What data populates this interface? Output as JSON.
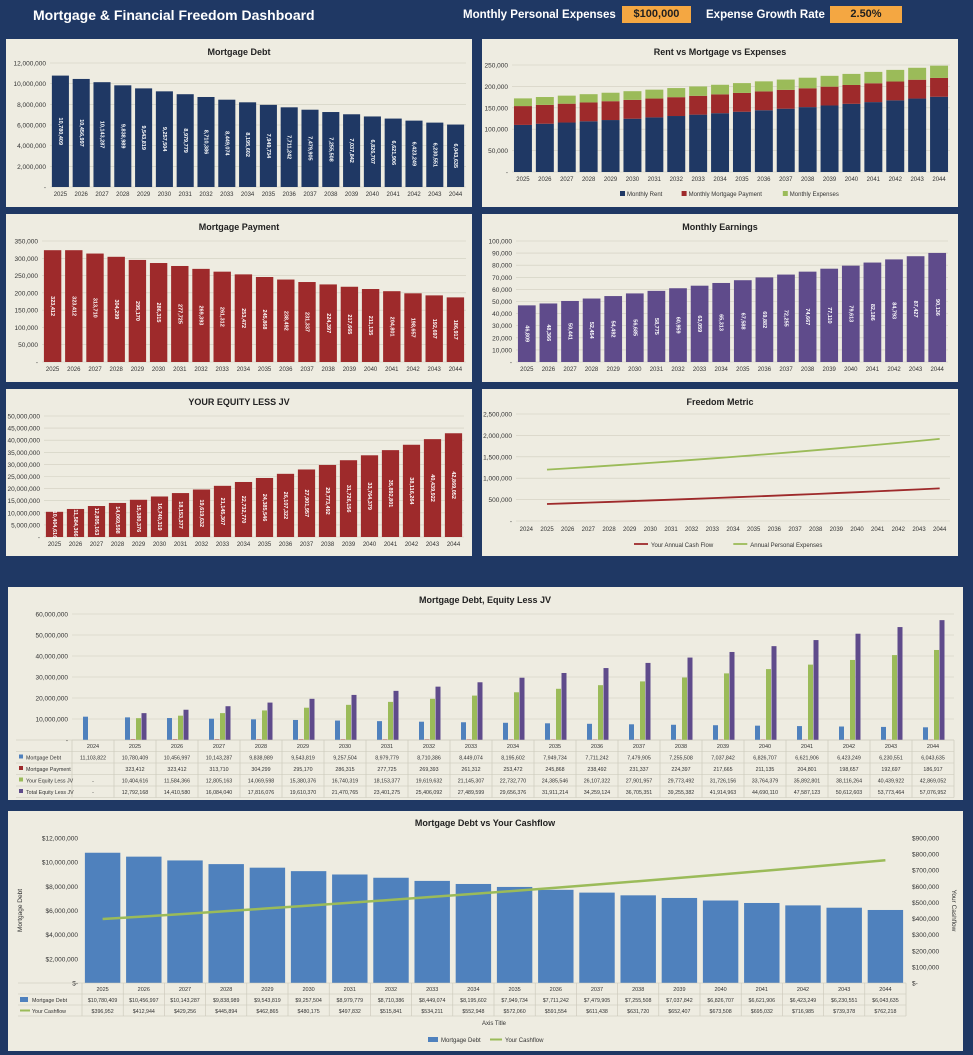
{
  "header": {
    "title": "Mortgage & Financial Freedom Dashboard",
    "expenses_label": "Monthly Personal Expenses",
    "expenses_value": "$100,000",
    "growth_label": "Expense Growth Rate",
    "growth_value": "2.50%"
  },
  "colors": {
    "navy": "#1f3864",
    "red": "#9e2a2b",
    "purple": "#5f4b8b",
    "green": "#9bbb59",
    "blue": "#4f81bd",
    "bg": "#eeece1",
    "accent": "#f4a742"
  },
  "chart_data": [
    {
      "id": "debt",
      "type": "bar",
      "title": "Mortgage Debt",
      "categories": [
        "2025",
        "2026",
        "2027",
        "2028",
        "2029",
        "2030",
        "2031",
        "2032",
        "2033",
        "2034",
        "2035",
        "2036",
        "2037",
        "2038",
        "2039",
        "2040",
        "2041",
        "2042",
        "2043",
        "2044"
      ],
      "values": [
        10780409,
        10456997,
        10143287,
        9838989,
        9543819,
        9257504,
        8979779,
        8710386,
        8449074,
        8195602,
        7949734,
        7711242,
        7479905,
        7255508,
        7037842,
        6826707,
        6621906,
        6423249,
        6230551,
        6043635
      ],
      "data_labels": [
        "10,780,409",
        "10,456,997",
        "10,143,287",
        "9,838,989",
        "9,543,819",
        "9,257,504",
        "8,979,779",
        "8,710,386",
        "8,449,074",
        "8,195,602",
        "7,949,734",
        "7,711,242",
        "7,479,905",
        "7,255,508",
        "7,037,842",
        "6,826,707",
        "6,621,906",
        "6,423,249",
        "6,230,551",
        "6,043,635"
      ],
      "yticks": [
        "-",
        "2,000,000",
        "4,000,000",
        "6,000,000",
        "8,000,000",
        "10,000,000",
        "12,000,000"
      ],
      "ylim": [
        0,
        12000000
      ]
    },
    {
      "id": "rent",
      "type": "bar",
      "title": "Rent vs Mortgage vs Expenses",
      "stacked": true,
      "categories": [
        "2025",
        "2026",
        "2027",
        "2028",
        "2029",
        "2030",
        "2031",
        "2032",
        "2033",
        "2034",
        "2035",
        "2036",
        "2037",
        "2038",
        "2039",
        "2040",
        "2041",
        "2042",
        "2043",
        "2044"
      ],
      "series": [
        {
          "name": "Monthly Rent",
          "values": [
            110000,
            112800,
            115600,
            118500,
            121400,
            124500,
            127600,
            130800,
            134000,
            137400,
            140800,
            144300,
            147900,
            151600,
            155400,
            159300,
            163300,
            167400,
            171600,
            175800
          ]
        },
        {
          "name": "Monthly Mortgage Payment",
          "values": [
            44000,
            44000,
            44000,
            44000,
            44000,
            44000,
            44000,
            44000,
            44000,
            44000,
            44000,
            44000,
            44000,
            44000,
            44000,
            44000,
            44000,
            44000,
            44000,
            44000
          ]
        },
        {
          "name": "Monthly Expenses",
          "values": [
            18000,
            18400,
            18800,
            19300,
            19800,
            20300,
            20800,
            21300,
            21800,
            22400,
            22900,
            23500,
            24100,
            24700,
            25300,
            25900,
            26600,
            27200,
            27900,
            28600
          ]
        }
      ],
      "yticks": [
        "-",
        "50,000",
        "100,000",
        "150,000",
        "200,000",
        "250,000"
      ],
      "ylim": [
        0,
        250000
      ],
      "legend": "bottom"
    },
    {
      "id": "payment",
      "type": "bar",
      "title": "Mortgage Payment",
      "categories": [
        "2025",
        "2026",
        "2027",
        "2028",
        "2029",
        "2030",
        "2031",
        "2032",
        "2033",
        "2034",
        "2035",
        "2036",
        "2037",
        "2038",
        "2039",
        "2040",
        "2041",
        "2042",
        "2043",
        "2044"
      ],
      "values": [
        323412,
        323412,
        313710,
        304299,
        295170,
        286315,
        277725,
        269393,
        261312,
        253472,
        245868,
        238492,
        231337,
        224397,
        217665,
        211135,
        204801,
        198657,
        192697,
        186917
      ],
      "data_labels": [
        "323,412",
        "323,412",
        "313,710",
        "304,299",
        "295,170",
        "286,315",
        "277,725",
        "269,393",
        "261,312",
        "253,472",
        "245,868",
        "238,492",
        "231,337",
        "224,397",
        "217,665",
        "211,135",
        "204,801",
        "198,657",
        "192,697",
        "186,917"
      ],
      "yticks": [
        "-",
        "50,000",
        "100,000",
        "150,000",
        "200,000",
        "250,000",
        "300,000",
        "350,000"
      ],
      "ylim": [
        0,
        350000
      ]
    },
    {
      "id": "earn",
      "type": "bar",
      "title": "Monthly Earnings",
      "categories": [
        "2025",
        "2026",
        "2027",
        "2028",
        "2029",
        "2030",
        "2031",
        "2032",
        "2033",
        "2034",
        "2035",
        "2036",
        "2037",
        "2038",
        "2039",
        "2040",
        "2041",
        "2042",
        "2043",
        "2044"
      ],
      "values": [
        46809,
        48366,
        50441,
        52454,
        54492,
        56685,
        58775,
        60959,
        63059,
        65313,
        67588,
        69882,
        72255,
        74667,
        77110,
        79613,
        82186,
        84793,
        87427,
        90136
      ],
      "data_labels": [
        "46,809",
        "48,366",
        "50,441",
        "52,454",
        "54,492",
        "56,685",
        "58,775",
        "60,959",
        "63,059",
        "65,313",
        "67,588",
        "69,882",
        "72,255",
        "74,667",
        "77,110",
        "79,613",
        "82,186",
        "84,793",
        "87,427",
        "90,136"
      ],
      "yticks": [
        "-",
        "10,000",
        "20,000",
        "30,000",
        "40,000",
        "50,000",
        "60,000",
        "70,000",
        "80,000",
        "90,000",
        "100,000"
      ],
      "ylim": [
        0,
        100000
      ]
    },
    {
      "id": "equity",
      "type": "bar",
      "title": "YOUR EQUITY LESS JV",
      "categories": [
        "2025",
        "2026",
        "2027",
        "2028",
        "2029",
        "2030",
        "2031",
        "2032",
        "2033",
        "2034",
        "2035",
        "2036",
        "2037",
        "2038",
        "2039",
        "2040",
        "2041",
        "2042",
        "2043",
        "2044"
      ],
      "values": [
        10404616,
        11584366,
        12805163,
        14069598,
        15380376,
        16740319,
        18153377,
        19619632,
        21145307,
        22732770,
        24385546,
        26107322,
        27901957,
        29773492,
        31726156,
        33764379,
        35892801,
        38116264,
        40439922,
        42869052
      ],
      "data_labels": [
        "10,404,616",
        "11,584,366",
        "12,805,163",
        "14,069,598",
        "15,380,376",
        "16,740,319",
        "18,153,377",
        "19,619,632",
        "21,145,307",
        "22,732,770",
        "24,385,546",
        "26,107,322",
        "27,901,957",
        "29,773,492",
        "31,726,156",
        "33,764,379",
        "35,892,801",
        "38,116,264",
        "40,439,922",
        "42,869,052"
      ],
      "yticks": [
        "-",
        "5,000,000",
        "10,000,000",
        "15,000,000",
        "20,000,000",
        "25,000,000",
        "30,000,000",
        "35,000,000",
        "40,000,000",
        "45,000,000",
        "50,000,000"
      ],
      "ylim": [
        0,
        50000000
      ]
    },
    {
      "id": "freedom",
      "type": "line",
      "title": "Freedom Metric",
      "categories": [
        "2024",
        "2025",
        "2026",
        "2027",
        "2028",
        "2029",
        "2030",
        "2031",
        "2032",
        "2033",
        "2034",
        "2035",
        "2036",
        "2037",
        "2038",
        "2039",
        "2040",
        "2041",
        "2042",
        "2043",
        "2044"
      ],
      "series": [
        {
          "name": "Your Annual Cash Flow",
          "values": [
            null,
            396952,
            412944,
            429256,
            445894,
            462865,
            480175,
            497832,
            515841,
            534211,
            552948,
            572060,
            591554,
            611438,
            631720,
            652407,
            673508,
            695032,
            716985,
            739378,
            762218
          ]
        },
        {
          "name": "Annual Personal Expenses",
          "values": [
            null,
            1200000,
            1230000,
            1260750,
            1292269,
            1324575,
            1357690,
            1391632,
            1426423,
            1462083,
            1498635,
            1536101,
            1574503,
            1613866,
            1654213,
            1695568,
            1737957,
            1781406,
            1825941,
            1871589,
            1918379
          ]
        }
      ],
      "yticks": [
        "-",
        "500,000",
        "1,000,000",
        "1,500,000",
        "2,000,000",
        "2,500,000"
      ],
      "ylim": [
        0,
        2500000
      ],
      "legend": "bottom"
    },
    {
      "id": "combo1",
      "type": "bar",
      "title": "Mortgage Debt, Equity Less JV",
      "categories": [
        "2024",
        "2025",
        "2026",
        "2027",
        "2028",
        "2029",
        "2030",
        "2031",
        "2032",
        "2033",
        "2034",
        "2035",
        "2036",
        "2037",
        "2038",
        "2039",
        "2040",
        "2041",
        "2042",
        "2043",
        "2044"
      ],
      "series": [
        {
          "name": "Mortgage Debt",
          "values": [
            11103822,
            10780409,
            10456997,
            10143287,
            9838989,
            9543819,
            9257504,
            8979779,
            8710386,
            8449074,
            8195602,
            7949734,
            7711242,
            7479905,
            7255508,
            7037842,
            6826707,
            6621906,
            6423249,
            6230551,
            6043635
          ],
          "labels": [
            "11,103,822",
            "10,780,409",
            "10,456,997",
            "10,143,287",
            "9,838,989",
            "9,543,819",
            "9,257,504",
            "8,979,779",
            "8,710,386",
            "8,449,074",
            "8,195,602",
            "7,949,734",
            "7,711,242",
            "7,479,905",
            "7,255,508",
            "7,037,842",
            "6,826,707",
            "6,621,906",
            "6,423,249",
            "6,230,551",
            "6,043,635"
          ]
        },
        {
          "name": "Mortgage Payment",
          "values": [
            null,
            323412,
            323412,
            313710,
            304299,
            295170,
            286315,
            277725,
            269393,
            261312,
            253472,
            245868,
            238492,
            231337,
            224397,
            217665,
            211135,
            204801,
            198657,
            192697,
            186917
          ],
          "labels": [
            "",
            "323,412",
            "323,412",
            "313,710",
            "304,299",
            "295,170",
            "286,315",
            "277,725",
            "269,393",
            "261,312",
            "253,472",
            "245,868",
            "238,492",
            "231,337",
            "224,397",
            "217,665",
            "211,135",
            "204,801",
            "198,657",
            "192,697",
            "186,917"
          ]
        },
        {
          "name": "Your Equity Less JV",
          "values": [
            null,
            10404616,
            11584366,
            12805163,
            14069598,
            15380376,
            16740319,
            18153377,
            19619632,
            21145307,
            22732770,
            24385546,
            26107322,
            27901957,
            29773492,
            31726156,
            33764379,
            35892801,
            38116264,
            40439922,
            42869052
          ],
          "labels": [
            "-",
            "10,404,616",
            "11,584,366",
            "12,805,163",
            "14,069,598",
            "15,380,376",
            "16,740,319",
            "18,153,377",
            "19,619,632",
            "21,145,307",
            "22,732,770",
            "24,385,546",
            "26,107,322",
            "27,901,957",
            "29,773,492",
            "31,726,156",
            "33,764,379",
            "35,892,801",
            "38,116,264",
            "40,439,922",
            "42,869,052"
          ]
        },
        {
          "name": "Total Equity Less JV",
          "values": [
            null,
            12792168,
            14410580,
            16084040,
            17816076,
            19610370,
            21470765,
            23401275,
            25406092,
            27489599,
            29656376,
            31911214,
            34259124,
            36705351,
            39255382,
            41914963,
            44690110,
            47587123,
            50612603,
            53773464,
            57076952
          ],
          "labels": [
            "-",
            "12,792,168",
            "14,410,580",
            "16,084,040",
            "17,816,076",
            "19,610,370",
            "21,470,765",
            "23,401,275",
            "25,406,092",
            "27,489,599",
            "29,656,376",
            "31,911,214",
            "34,259,124",
            "36,705,351",
            "39,255,382",
            "41,914,963",
            "44,690,110",
            "47,587,123",
            "50,612,603",
            "53,773,464",
            "57,076,952"
          ]
        }
      ],
      "yticks": [
        "-",
        "10,000,000",
        "20,000,000",
        "30,000,000",
        "40,000,000",
        "50,000,000",
        "60,000,000"
      ],
      "ylim": [
        0,
        60000000
      ]
    },
    {
      "id": "combo2",
      "type": "bar",
      "title": "Mortgage Debt vs Your Cashflow",
      "categories": [
        "2025",
        "2026",
        "2027",
        "2028",
        "2029",
        "2030",
        "2031",
        "2032",
        "2033",
        "2034",
        "2035",
        "2036",
        "2037",
        "2038",
        "2039",
        "2040",
        "2041",
        "2042",
        "2043",
        "2044"
      ],
      "series": [
        {
          "name": "Mortgage Debt",
          "axis": "left",
          "values": [
            10780409,
            10456997,
            10143287,
            9838989,
            9543819,
            9257504,
            8979779,
            8710386,
            8449074,
            8195602,
            7949734,
            7711242,
            7479905,
            7255508,
            7037842,
            6826707,
            6621906,
            6423249,
            6230551,
            6043635
          ],
          "labels": [
            "$10,780,409",
            "$10,456,997",
            "$10,143,287",
            "$9,838,989",
            "$9,543,819",
            "$9,257,504",
            "$8,979,779",
            "$8,710,386",
            "$8,449,074",
            "$8,195,602",
            "$7,949,734",
            "$7,711,242",
            "$7,479,905",
            "$7,255,508",
            "$7,037,842",
            "$6,826,707",
            "$6,621,906",
            "$6,423,249",
            "$6,230,551",
            "$6,043,635"
          ]
        },
        {
          "name": "Your Cashflow",
          "axis": "right",
          "values": [
            396952,
            412944,
            429256,
            445894,
            462865,
            480175,
            497832,
            515841,
            534211,
            552948,
            572060,
            591554,
            611438,
            631720,
            652407,
            673508,
            695032,
            716985,
            739378,
            762218
          ],
          "labels": [
            "$396,952",
            "$412,944",
            "$429,256",
            "$445,894",
            "$462,865",
            "$480,175",
            "$497,832",
            "$515,841",
            "$534,211",
            "$552,948",
            "$572,060",
            "$591,554",
            "$611,438",
            "$631,720",
            "$652,407",
            "$673,508",
            "$695,032",
            "$716,985",
            "$739,378",
            "$762,218"
          ]
        }
      ],
      "yticks": [
        "$-",
        "$2,000,000",
        "$4,000,000",
        "$6,000,000",
        "$8,000,000",
        "$10,000,000",
        "$12,000,000"
      ],
      "ylim": [
        0,
        12000000
      ],
      "y2ticks": [
        "$-",
        "$100,000",
        "$200,000",
        "$300,000",
        "$400,000",
        "$500,000",
        "$600,000",
        "$700,000",
        "$800,000",
        "$900,000"
      ],
      "y2lim": [
        0,
        900000
      ],
      "ylabel": "Mortgage Debt",
      "y2label": "Your Cashflow",
      "xlabel": "Axis Title",
      "legend": "bottom"
    }
  ]
}
